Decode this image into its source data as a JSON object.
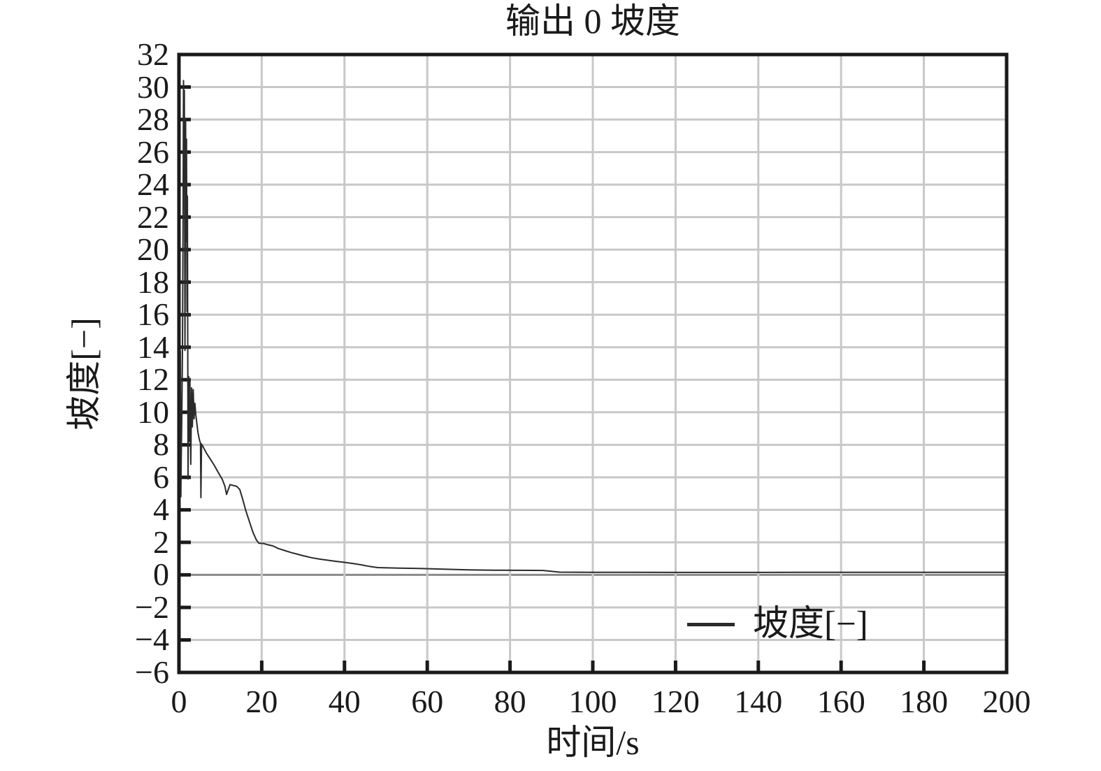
{
  "figure": {
    "title": "输出 0 坡度",
    "xlabel": "时间/s",
    "ylabel": "坡度[−]",
    "legend": {
      "label": "坡度[−]"
    }
  },
  "chart_data": {
    "type": "line",
    "title": "输出 0 坡度",
    "xlabel": "时间/s",
    "ylabel": "坡度[−]",
    "xlim": [
      0,
      200
    ],
    "ylim": [
      -6,
      32
    ],
    "xticks": [
      0,
      20,
      40,
      60,
      80,
      100,
      120,
      140,
      160,
      180,
      200
    ],
    "yticks": [
      32,
      30,
      28,
      26,
      24,
      22,
      20,
      18,
      16,
      14,
      12,
      10,
      8,
      6,
      4,
      2,
      0,
      -2,
      -4,
      -6
    ],
    "grid": true,
    "legend_position": "inside lower right",
    "colors": {
      "grid": "#c8c8c8",
      "zero_line": "#8a8a8a",
      "axis": "#1a1a1a",
      "text": "#1a1a1a",
      "background": "#ffffff"
    },
    "series": [
      {
        "name": "坡度[−]",
        "color": "#2b2b2b",
        "points": [
          [
            0.35,
            13.8
          ],
          [
            0.45,
            4.8
          ],
          [
            0.55,
            7.2
          ],
          [
            0.7,
            9.8
          ],
          [
            0.85,
            13.8
          ],
          [
            1.0,
            22.0
          ],
          [
            1.1,
            30.4
          ],
          [
            1.2,
            26.0
          ],
          [
            1.3,
            29.8
          ],
          [
            1.45,
            13.8
          ],
          [
            1.6,
            28.0
          ],
          [
            1.72,
            20.5
          ],
          [
            1.82,
            26.8
          ],
          [
            1.95,
            16.2
          ],
          [
            2.05,
            23.3
          ],
          [
            2.2,
            5.9
          ],
          [
            2.35,
            12.2
          ],
          [
            2.5,
            8.2
          ],
          [
            2.65,
            11.9
          ],
          [
            2.85,
            6.8
          ],
          [
            3.05,
            11.5
          ],
          [
            3.25,
            9.1
          ],
          [
            3.45,
            11.4
          ],
          [
            3.65,
            9.6
          ],
          [
            3.85,
            10.55
          ],
          [
            4.05,
            9.9
          ],
          [
            4.3,
            9.35
          ],
          [
            4.6,
            8.75
          ],
          [
            4.95,
            8.3
          ],
          [
            5.2,
            8.1
          ],
          [
            5.3,
            4.75
          ],
          [
            5.45,
            8.05
          ],
          [
            5.9,
            7.85
          ],
          [
            6.6,
            7.5
          ],
          [
            7.5,
            7.15
          ],
          [
            8.5,
            6.75
          ],
          [
            9.5,
            6.3
          ],
          [
            10.5,
            5.85
          ],
          [
            11.1,
            5.45
          ],
          [
            11.5,
            4.95
          ],
          [
            12.0,
            5.3
          ],
          [
            12.35,
            5.55
          ],
          [
            13.1,
            5.5
          ],
          [
            13.9,
            5.45
          ],
          [
            14.7,
            5.25
          ],
          [
            15.4,
            4.65
          ],
          [
            16.1,
            4.0
          ],
          [
            17.0,
            3.3
          ],
          [
            17.9,
            2.6
          ],
          [
            18.7,
            2.15
          ],
          [
            19.3,
            1.95
          ],
          [
            20.4,
            1.93
          ],
          [
            21.5,
            1.85
          ],
          [
            22.7,
            1.78
          ],
          [
            24.0,
            1.62
          ],
          [
            25.5,
            1.5
          ],
          [
            27.0,
            1.38
          ],
          [
            28.5,
            1.28
          ],
          [
            30.0,
            1.18
          ],
          [
            32.0,
            1.06
          ],
          [
            34.0,
            0.97
          ],
          [
            36.0,
            0.9
          ],
          [
            38.0,
            0.83
          ],
          [
            40.0,
            0.77
          ],
          [
            42.0,
            0.7
          ],
          [
            44.0,
            0.62
          ],
          [
            46.0,
            0.52
          ],
          [
            48.0,
            0.45
          ],
          [
            53.0,
            0.42
          ],
          [
            58.0,
            0.39
          ],
          [
            64.0,
            0.35
          ],
          [
            70.0,
            0.31
          ],
          [
            76.0,
            0.29
          ],
          [
            82.0,
            0.28
          ],
          [
            88.0,
            0.27
          ],
          [
            92.0,
            0.17
          ],
          [
            100.0,
            0.16
          ],
          [
            110.0,
            0.16
          ],
          [
            120.0,
            0.15
          ],
          [
            140.0,
            0.15
          ],
          [
            160.0,
            0.16
          ],
          [
            180.0,
            0.16
          ],
          [
            200.0,
            0.16
          ]
        ]
      }
    ]
  }
}
